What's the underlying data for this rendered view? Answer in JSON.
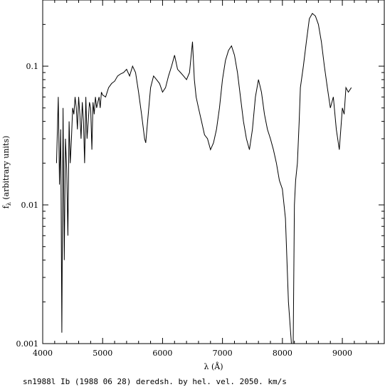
{
  "chart_data": {
    "type": "line",
    "title": "",
    "xlabel": "λ (Å)",
    "ylabel": "fλ (arbitrary units)",
    "ylabel_main": "f",
    "ylabel_sub": "λ",
    "ylabel_rest": " (arbitrary units)",
    "caption": "sn1988l Ib (1988 06 28) deredsh. by hel. vel.  2050. km/s",
    "xlim": [
      4000,
      9700
    ],
    "ylim": [
      0.001,
      0.3
    ],
    "yscale": "log",
    "x_ticks": [
      "4000",
      "5000",
      "6000",
      "7000",
      "8000",
      "9000"
    ],
    "y_ticks": [
      "0.1",
      "0.01",
      "0.001"
    ],
    "grid": false,
    "series": [
      {
        "x": [
          4230,
          4260,
          4280,
          4300,
          4320,
          4340,
          4360,
          4380,
          4400,
          4420,
          4440,
          4460,
          4480,
          4500,
          4520,
          4540,
          4560,
          4580,
          4600,
          4620,
          4640,
          4660,
          4680,
          4700,
          4720,
          4740,
          4760,
          4780,
          4800,
          4820,
          4840,
          4860,
          4880,
          4900,
          4920,
          4940,
          4960,
          4980,
          5000,
          5050,
          5100,
          5150,
          5200,
          5250,
          5300,
          5350,
          5400,
          5450,
          5500,
          5550,
          5600,
          5650,
          5700,
          5720,
          5750,
          5800,
          5850,
          5900,
          5950,
          6000,
          6050,
          6100,
          6150,
          6200,
          6250,
          6300,
          6350,
          6400,
          6450,
          6500,
          6530,
          6560,
          6600,
          6650,
          6700,
          6750,
          6800,
          6850,
          6900,
          6950,
          7000,
          7050,
          7100,
          7150,
          7200,
          7250,
          7300,
          7350,
          7400,
          7450,
          7500,
          7550,
          7600,
          7650,
          7700,
          7750,
          7800,
          7850,
          7900,
          7950,
          8000,
          8050,
          8100,
          8150,
          8180,
          8200,
          8220,
          8250,
          8280,
          8300,
          8350,
          8400,
          8450,
          8500,
          8550,
          8600,
          8650,
          8700,
          8750,
          8800,
          8850,
          8900,
          8950,
          9000,
          9030,
          9060,
          9100,
          9150
        ],
        "y": [
          0.02,
          0.06,
          0.014,
          0.035,
          0.0012,
          0.05,
          0.004,
          0.03,
          0.018,
          0.006,
          0.04,
          0.02,
          0.03,
          0.05,
          0.045,
          0.06,
          0.05,
          0.035,
          0.06,
          0.045,
          0.03,
          0.055,
          0.04,
          0.02,
          0.06,
          0.03,
          0.04,
          0.055,
          0.05,
          0.025,
          0.055,
          0.045,
          0.06,
          0.05,
          0.055,
          0.06,
          0.05,
          0.065,
          0.062,
          0.06,
          0.07,
          0.075,
          0.078,
          0.085,
          0.088,
          0.09,
          0.095,
          0.085,
          0.1,
          0.09,
          0.065,
          0.045,
          0.03,
          0.028,
          0.04,
          0.07,
          0.085,
          0.08,
          0.075,
          0.065,
          0.07,
          0.085,
          0.1,
          0.12,
          0.095,
          0.09,
          0.085,
          0.08,
          0.09,
          0.15,
          0.08,
          0.06,
          0.05,
          0.04,
          0.032,
          0.03,
          0.025,
          0.028,
          0.035,
          0.05,
          0.08,
          0.11,
          0.13,
          0.14,
          0.12,
          0.09,
          0.06,
          0.04,
          0.03,
          0.025,
          0.035,
          0.06,
          0.08,
          0.065,
          0.045,
          0.035,
          0.03,
          0.025,
          0.02,
          0.015,
          0.013,
          0.008,
          0.002,
          0.001,
          0.001,
          0.01,
          0.015,
          0.02,
          0.04,
          0.07,
          0.1,
          0.15,
          0.22,
          0.24,
          0.23,
          0.2,
          0.15,
          0.1,
          0.07,
          0.05,
          0.06,
          0.035,
          0.025,
          0.05,
          0.045,
          0.07,
          0.065,
          0.07
        ]
      }
    ]
  }
}
